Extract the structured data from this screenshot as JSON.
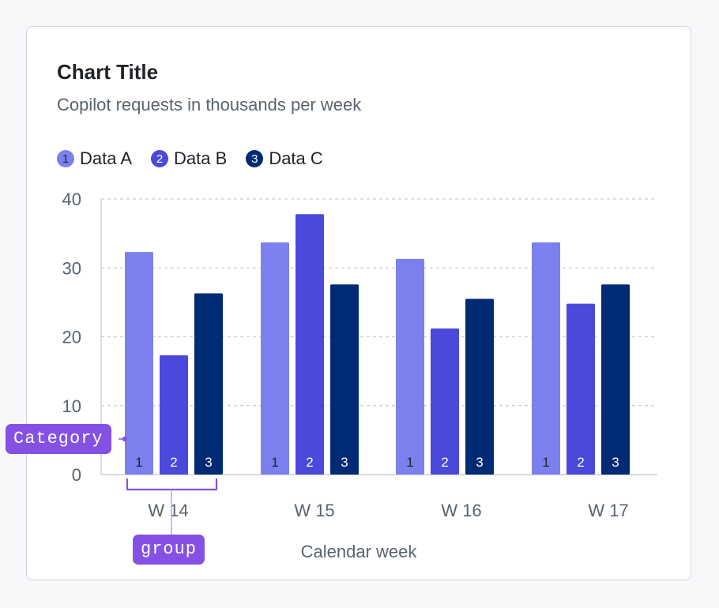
{
  "chart_data": {
    "type": "bar",
    "title": "Chart Title",
    "subtitle": "Copilot requests in thousands per week",
    "xlabel": "Calendar week",
    "ylabel": "",
    "ylim": [
      0,
      40
    ],
    "yticks": [
      0,
      10,
      20,
      30,
      40
    ],
    "grid": true,
    "legend_position": "top-left",
    "categories": [
      "W 14",
      "W 15",
      "W 16",
      "W 17"
    ],
    "series": [
      {
        "name": "Data A",
        "marker": "1",
        "color": "#7c80ee",
        "label_color": "#1f2328",
        "values": [
          32.3,
          33.7,
          31.3,
          33.7
        ]
      },
      {
        "name": "Data B",
        "marker": "2",
        "color": "#4a49db",
        "label_color": "#ffffff",
        "values": [
          17.3,
          37.8,
          21.2,
          24.8
        ]
      },
      {
        "name": "Data C",
        "marker": "3",
        "color": "#002a73",
        "label_color": "#ffffff",
        "values": [
          26.3,
          27.6,
          25.5,
          27.6
        ]
      }
    ]
  },
  "annotations": {
    "category_tag": "Category",
    "group_tag": "group",
    "tag_color": "#8451e4"
  }
}
